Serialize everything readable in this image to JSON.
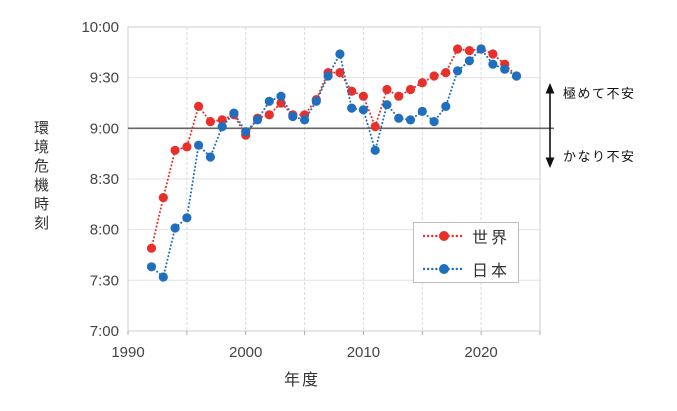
{
  "chart_data": {
    "type": "line",
    "title": "",
    "xlabel": "年度",
    "ylabel": "環境危機時刻",
    "x_min": 1990,
    "x_max": 2025,
    "grid_interval_years": 5,
    "y_min": "7:00",
    "y_max": "10:00",
    "y_ticks": [
      "10:00",
      "9:30",
      "9:00",
      "8:30",
      "8:00",
      "7:30",
      "7:00"
    ],
    "x_ticks": [
      "1990",
      "2000",
      "2010",
      "2020"
    ],
    "reference_line": "9:00",
    "grid": true,
    "legend_position": "inside-bottom-right",
    "marker_style": "filled-circle-dotted-line",
    "years": [
      1992,
      1993,
      1994,
      1995,
      1996,
      1997,
      1998,
      1999,
      2000,
      2001,
      2002,
      2003,
      2004,
      2005,
      2006,
      2007,
      2008,
      2009,
      2010,
      2011,
      2012,
      2013,
      2014,
      2015,
      2016,
      2017,
      2018,
      2019,
      2020,
      2021,
      2022,
      2023
    ],
    "series": [
      {
        "name": "世界",
        "color": "#e8302a",
        "values": [
          "7:49",
          "8:19",
          "8:47",
          "8:49",
          "9:13",
          "9:04",
          "9:05",
          "9:08",
          "8:56",
          "9:06",
          "9:08",
          "9:15",
          "9:08",
          "9:08",
          "9:17",
          "9:33",
          "9:33",
          "9:22",
          "9:19",
          "9:01",
          "9:23",
          "9:19",
          "9:23",
          "9:27",
          "9:31",
          "9:33",
          "9:47",
          "9:46",
          "9:47",
          "9:44",
          "9:38",
          "9:31"
        ]
      },
      {
        "name": "日本",
        "color": "#1f6fbe",
        "values": [
          "7:38",
          "7:32",
          "8:01",
          "8:07",
          "8:50",
          "8:43",
          "9:01",
          "9:09",
          "8:58",
          "9:05",
          "9:16",
          "9:19",
          "9:07",
          "9:05",
          "9:16",
          "9:31",
          "9:44",
          "9:12",
          "9:11",
          "8:47",
          "9:14",
          "9:06",
          "9:05",
          "9:10",
          "9:04",
          "9:13",
          "9:34",
          "9:40",
          "9:47",
          "9:38",
          "9:35",
          "9:31"
        ]
      }
    ],
    "annotations": {
      "upper": "極めて不安",
      "lower": "かなり不安"
    }
  }
}
